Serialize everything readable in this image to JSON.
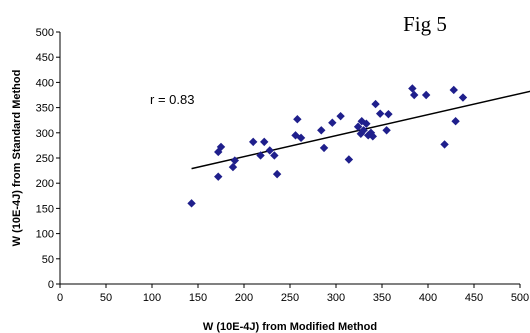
{
  "chart_data": {
    "type": "scatter",
    "title": "Fig 5",
    "xlabel": "W (10E-4J) from Modified Method",
    "ylabel": "W (10E-4J) from Standard Method",
    "xlim": [
      0,
      500
    ],
    "ylim": [
      0,
      500
    ],
    "xticks": [
      "0",
      "50",
      "100",
      "150",
      "200",
      "250",
      "300",
      "350",
      "400",
      "450",
      "500"
    ],
    "yticks": [
      "0",
      "50",
      "100",
      "150",
      "200",
      "250",
      "300",
      "350",
      "400",
      "450",
      "500"
    ],
    "grid": false,
    "marker_color": "#1f1f8c",
    "trend_color": "#000000",
    "annotation": "r = 0.83",
    "trendline": {
      "x": [
        143,
        520
      ],
      "y": [
        229,
        386
      ]
    },
    "points": [
      {
        "x": 143,
        "y": 160
      },
      {
        "x": 172,
        "y": 213
      },
      {
        "x": 172,
        "y": 262
      },
      {
        "x": 175,
        "y": 272
      },
      {
        "x": 188,
        "y": 232
      },
      {
        "x": 190,
        "y": 245
      },
      {
        "x": 210,
        "y": 282
      },
      {
        "x": 218,
        "y": 255
      },
      {
        "x": 222,
        "y": 282
      },
      {
        "x": 228,
        "y": 265
      },
      {
        "x": 233,
        "y": 255
      },
      {
        "x": 236,
        "y": 218
      },
      {
        "x": 256,
        "y": 295
      },
      {
        "x": 258,
        "y": 327
      },
      {
        "x": 262,
        "y": 290
      },
      {
        "x": 284,
        "y": 305
      },
      {
        "x": 287,
        "y": 270
      },
      {
        "x": 296,
        "y": 320
      },
      {
        "x": 305,
        "y": 333
      },
      {
        "x": 314,
        "y": 247
      },
      {
        "x": 324,
        "y": 312
      },
      {
        "x": 327,
        "y": 298
      },
      {
        "x": 328,
        "y": 323
      },
      {
        "x": 330,
        "y": 305
      },
      {
        "x": 333,
        "y": 318
      },
      {
        "x": 335,
        "y": 295
      },
      {
        "x": 338,
        "y": 300
      },
      {
        "x": 340,
        "y": 293
      },
      {
        "x": 343,
        "y": 357
      },
      {
        "x": 348,
        "y": 338
      },
      {
        "x": 355,
        "y": 305
      },
      {
        "x": 357,
        "y": 337
      },
      {
        "x": 383,
        "y": 388
      },
      {
        "x": 385,
        "y": 375
      },
      {
        "x": 398,
        "y": 375
      },
      {
        "x": 418,
        "y": 277
      },
      {
        "x": 428,
        "y": 385
      },
      {
        "x": 430,
        "y": 323
      },
      {
        "x": 438,
        "y": 370
      }
    ]
  }
}
